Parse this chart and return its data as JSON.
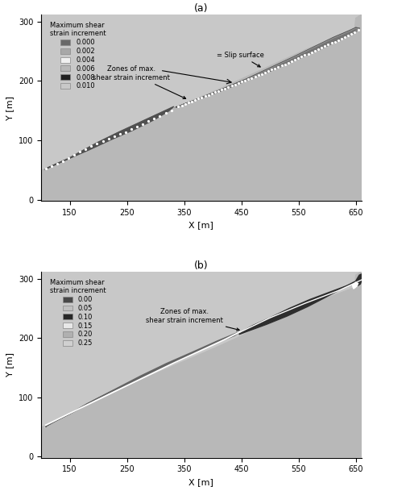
{
  "fig_width": 5.1,
  "fig_height": 6.04,
  "dpi": 100,
  "xlim": [
    100,
    660
  ],
  "ylim": [
    -2,
    312
  ],
  "xlabel": "X [m]",
  "ylabel": "Y [m]",
  "xticks": [
    150,
    250,
    350,
    450,
    550,
    650
  ],
  "yticks": [
    0,
    100,
    200,
    300
  ],
  "panel_a_title": "(a)",
  "panel_b_title": "(b)",
  "legend_a_title": "Maximum shear\nstrain increment",
  "legend_a_labels": [
    "0.000",
    "0.002",
    "0.004",
    "0.006",
    "0.008",
    "0.010"
  ],
  "legend_a_colors": [
    "#686868",
    "#a8a8a8",
    "#f0f0f0",
    "#b8b8b8",
    "#222222",
    "#c8c8c8"
  ],
  "legend_b_title": "Maximum shear\nstrain increment",
  "legend_b_labels": [
    "0.00",
    "0.05",
    "0.10",
    "0.15",
    "0.20",
    "0.25"
  ],
  "legend_b_colors": [
    "#484848",
    "#c0c0c0",
    "#282828",
    "#e8e8e8",
    "#b0b0b0",
    "#d0d0d0"
  ],
  "terrain_color": "#b8b8b8",
  "bg_color": "#c8c8c8",
  "annotation_a1": "Zones of max.\nshear strain increment",
  "annotation_a2": "= Slip surface",
  "annotation_b1": "Zones of max.\nshear strain increment"
}
